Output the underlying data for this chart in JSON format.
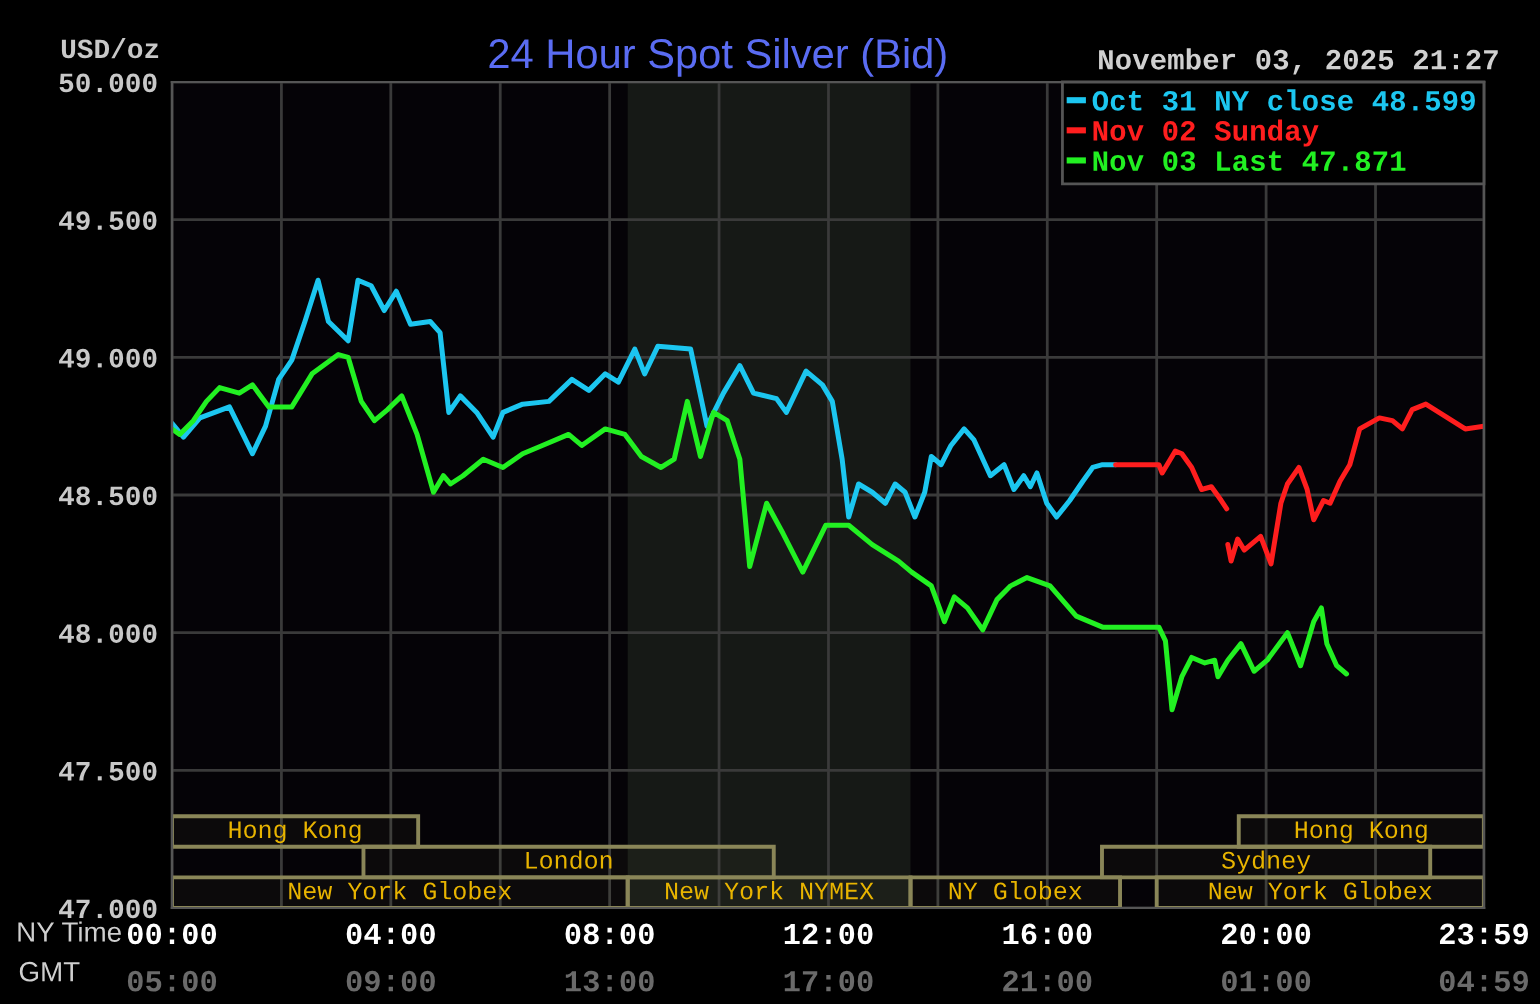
{
  "chart_data": [
    {
      "type": "line",
      "title": "24 Hour Spot Silver (Bid)",
      "subtitle": "November 03, 2025 21:27",
      "xlabel": "NY Time",
      "x2label": "GMT",
      "ylabel": "USD/oz",
      "xlim": [
        0,
        23.983
      ],
      "ylim": [
        47,
        50
      ],
      "xticks": [
        {
          "value": 0,
          "label": "00:00"
        },
        {
          "value": 2,
          "label": null
        },
        {
          "value": 4,
          "label": "04:00"
        },
        {
          "value": 6,
          "label": null
        },
        {
          "value": 8,
          "label": "08:00"
        },
        {
          "value": 10,
          "label": null
        },
        {
          "value": 12,
          "label": "12:00"
        },
        {
          "value": 14,
          "label": null
        },
        {
          "value": 16,
          "label": "16:00"
        },
        {
          "value": 18,
          "label": null
        },
        {
          "value": 20,
          "label": "20:00"
        },
        {
          "value": 22,
          "label": null
        },
        {
          "value": 23.983,
          "label": "23:59"
        }
      ],
      "x2lim": [
        "2025-11-03T05:00",
        "2025-11-04T04:59"
      ],
      "x2ticks": [
        {
          "value": "2025-11-03T05:00",
          "label": "05:00"
        },
        {
          "value": "2025-11-03T09:00",
          "label": "09:00"
        },
        {
          "value": "2025-11-03T13:00",
          "label": "13:00"
        },
        {
          "value": "2025-11-03T17:00",
          "label": "17:00"
        },
        {
          "value": "2025-11-03T21:00",
          "label": "21:00"
        },
        {
          "value": "2025-11-04T01:00",
          "label": "01:00"
        },
        {
          "value": "2025-11-04T04:59",
          "label": "04:59"
        }
      ],
      "yticks": [
        {
          "value": 47,
          "label": "47.000"
        },
        {
          "value": 47.5,
          "label": "47.500"
        },
        {
          "value": 48,
          "label": "48.000"
        },
        {
          "value": 48.5,
          "label": "48.500"
        },
        {
          "value": 49,
          "label": "49.000"
        },
        {
          "value": 49.5,
          "label": "49.500"
        },
        {
          "value": 50,
          "label": "50.000"
        }
      ],
      "series": [
        {
          "name": "Oct 31 NY close 48.599",
          "color": "#1cc6f0",
          "x": [
            0,
            0.21,
            0.51,
            1.05,
            1.47,
            1.71,
            1.95,
            2.19,
            2.43,
            2.67,
            2.86,
            3.22,
            3.4,
            3.64,
            3.88,
            4.1,
            4.36,
            4.72,
            4.9,
            5.06,
            5.27,
            5.57,
            5.87,
            6.05,
            6.41,
            6.89,
            7.31,
            7.62,
            7.92,
            8.16,
            8.46,
            8.64,
            8.88,
            9.48,
            9.78,
            10.08,
            10.38,
            10.63,
            11.05,
            11.23,
            11.59,
            11.89,
            12.07,
            12.25,
            12.37,
            12.55,
            12.8,
            13.04,
            13.22,
            13.4,
            13.58,
            13.76,
            13.88,
            14.06,
            14.24,
            14.48,
            14.66,
            14.96,
            15.21,
            15.39,
            15.57,
            15.69,
            15.81,
            15.99,
            16.17,
            16.41,
            16.65,
            16.83,
            17.01,
            17.25
          ],
          "values": [
            48.76,
            48.71,
            48.78,
            48.82,
            48.65,
            48.75,
            48.92,
            48.99,
            49.13,
            49.28,
            49.13,
            49.06,
            49.28,
            49.26,
            49.17,
            49.24,
            49.12,
            49.13,
            49.09,
            48.8,
            48.86,
            48.8,
            48.71,
            48.8,
            48.83,
            48.84,
            48.92,
            48.88,
            48.94,
            48.91,
            49.03,
            48.94,
            49.04,
            49.03,
            48.75,
            48.87,
            48.97,
            48.87,
            48.85,
            48.8,
            48.95,
            48.9,
            48.84,
            48.63,
            48.42,
            48.54,
            48.51,
            48.47,
            48.54,
            48.51,
            48.42,
            48.51,
            48.64,
            48.61,
            48.68,
            48.74,
            48.7,
            48.57,
            48.61,
            48.52,
            48.57,
            48.53,
            48.58,
            48.47,
            48.42,
            48.48,
            48.55,
            48.6,
            48.61,
            48.61
          ]
        },
        {
          "name": "Nov 02 Sunday",
          "color": "#ff1e1e",
          "x": [
            17.25,
            18.04,
            18.1,
            18.34,
            18.46,
            18.64,
            18.82,
            19.0,
            19.18,
            19.28,
            19.29,
            19.3,
            19.36,
            19.48,
            19.6,
            19.9,
            20.09,
            20.27,
            20.39,
            20.6,
            20.75,
            20.87,
            21.05,
            21.17,
            21.35,
            21.53,
            21.71,
            21.89,
            22.07,
            22.31,
            22.49,
            22.67,
            22.92,
            23.16,
            23.4,
            23.64,
            23.98
          ],
          "values": [
            48.61,
            48.61,
            48.58,
            48.66,
            48.65,
            48.6,
            48.52,
            48.53,
            48.48,
            48.45,
            null,
            48.32,
            48.26,
            48.34,
            48.3,
            48.35,
            48.25,
            48.47,
            48.54,
            48.6,
            48.52,
            48.41,
            48.48,
            48.47,
            48.55,
            48.61,
            48.74,
            48.76,
            48.78,
            48.77,
            48.74,
            48.81,
            48.83,
            48.8,
            48.77,
            48.74,
            48.75
          ]
        },
        {
          "name": "Nov 03 Last 47.871",
          "color": "#22f022",
          "x": [
            0,
            0.14,
            0.39,
            0.63,
            0.87,
            1.23,
            1.47,
            1.77,
            2.19,
            2.56,
            3.04,
            3.22,
            3.46,
            3.7,
            3.94,
            4.2,
            4.48,
            4.78,
            4.96,
            5.09,
            5.32,
            5.69,
            6.05,
            6.41,
            6.77,
            7.25,
            7.49,
            7.92,
            8.28,
            8.58,
            8.94,
            9.18,
            9.42,
            9.66,
            9.9,
            10.15,
            10.38,
            10.56,
            10.87,
            11.17,
            11.53,
            11.95,
            12.37,
            12.8,
            13.28,
            13.52,
            13.88,
            14.12,
            14.3,
            14.54,
            14.82,
            15.08,
            15.33,
            15.63,
            16.05,
            16.53,
            17.01,
            18.04,
            18.16,
            18.28,
            18.46,
            18.64,
            18.88,
            19.06,
            19.12,
            19.3,
            19.54,
            19.78,
            20.02,
            20.39,
            20.63,
            20.87,
            21.01,
            21.11,
            21.29,
            21.47
          ],
          "values": [
            48.74,
            48.72,
            48.77,
            48.84,
            48.89,
            48.87,
            48.9,
            48.82,
            48.82,
            48.94,
            49.01,
            49.0,
            48.84,
            48.77,
            48.81,
            48.86,
            48.72,
            48.51,
            48.57,
            48.54,
            48.57,
            48.63,
            48.6,
            48.65,
            48.68,
            48.72,
            48.68,
            48.74,
            48.72,
            48.64,
            48.6,
            48.63,
            48.84,
            48.64,
            48.8,
            48.77,
            48.63,
            48.24,
            48.47,
            48.36,
            48.22,
            48.39,
            48.39,
            48.32,
            48.26,
            48.22,
            48.17,
            48.04,
            48.13,
            48.09,
            48.01,
            48.12,
            48.17,
            48.2,
            48.17,
            48.06,
            48.02,
            48.02,
            47.97,
            47.72,
            47.84,
            47.91,
            47.89,
            47.9,
            47.84,
            47.9,
            47.96,
            47.86,
            47.9,
            48.0,
            47.88,
            48.04,
            48.09,
            47.96,
            47.88,
            47.85
          ]
        }
      ],
      "bands": [
        {
          "axis": "x",
          "from": 8.33,
          "to": 13.5,
          "color": "#161916"
        }
      ],
      "grid": true,
      "legend": "top right"
    },
    {
      "type": "bar",
      "orientation": "horizontal",
      "xlim": [
        0,
        23.983
      ],
      "tick_labels": false,
      "categories": [
        null,
        null,
        null,
        null,
        null,
        null,
        null,
        null,
        null,
        null,
        null,
        null,
        null,
        null,
        null,
        null,
        null,
        null,
        null,
        null,
        null,
        null,
        null,
        null,
        null,
        null,
        null
      ],
      "series": [
        {
          "name": "Hong Kong",
          "color": "#8a8658",
          "values": [
            null,
            null,
            null,
            null,
            null,
            null,
            null,
            null,
            null,
            null,
            null,
            null,
            null,
            null,
            null,
            null,
            null,
            null,
            null,
            null,
            null,
            null,
            null,
            null,
            4.5,
            null,
            null
          ],
          "base": [
            null,
            null,
            null,
            null,
            null,
            null,
            null,
            null,
            null,
            null,
            null,
            null,
            null,
            null,
            null,
            null,
            null,
            null,
            null,
            null,
            null,
            null,
            null,
            null,
            0,
            null,
            null
          ]
        },
        {
          "name": "Hong Kong",
          "color": "#8a8658",
          "values": [
            null,
            null,
            null,
            null,
            null,
            null,
            null,
            null,
            null,
            null,
            null,
            null,
            null,
            null,
            null,
            null,
            null,
            null,
            null,
            null,
            null,
            null,
            null,
            null,
            4.48,
            null,
            null
          ],
          "base": [
            null,
            null,
            null,
            null,
            null,
            null,
            null,
            null,
            null,
            null,
            null,
            null,
            null,
            null,
            null,
            null,
            null,
            null,
            null,
            null,
            null,
            null,
            null,
            null,
            19.5,
            null,
            null
          ]
        },
        {
          "name": "London",
          "color": "#8a8658",
          "values": [
            null,
            null,
            null,
            null,
            null,
            null,
            null,
            null,
            null,
            null,
            null,
            null,
            null,
            null,
            null,
            null,
            null,
            null,
            null,
            null,
            null,
            null,
            null,
            null,
            null,
            7.5,
            null
          ],
          "base": [
            null,
            null,
            null,
            null,
            null,
            null,
            null,
            null,
            null,
            null,
            null,
            null,
            null,
            null,
            null,
            null,
            null,
            null,
            null,
            null,
            null,
            null,
            null,
            null,
            null,
            3.5,
            null
          ]
        },
        {
          "name": "Sydney",
          "color": "#8a8658",
          "values": [
            null,
            null,
            null,
            null,
            null,
            null,
            null,
            null,
            null,
            null,
            null,
            null,
            null,
            null,
            null,
            null,
            null,
            null,
            null,
            null,
            null,
            null,
            null,
            null,
            null,
            6,
            null
          ],
          "base": [
            null,
            null,
            null,
            null,
            null,
            null,
            null,
            null,
            null,
            null,
            null,
            null,
            null,
            null,
            null,
            null,
            null,
            null,
            null,
            null,
            null,
            null,
            null,
            null,
            null,
            17,
            null
          ]
        },
        {
          "name": "New York Globex",
          "color": "#8a8658",
          "values": [
            null,
            null,
            null,
            null,
            null,
            null,
            null,
            null,
            null,
            null,
            null,
            null,
            null,
            null,
            null,
            null,
            null,
            null,
            null,
            null,
            null,
            null,
            null,
            null,
            null,
            null,
            8.33
          ],
          "base": [
            null,
            null,
            null,
            null,
            null,
            null,
            null,
            null,
            null,
            null,
            null,
            null,
            null,
            null,
            null,
            null,
            null,
            null,
            null,
            null,
            null,
            null,
            null,
            null,
            null,
            null,
            0
          ]
        },
        {
          "name": "New York NYMEX",
          "color": "#8a8658",
          "values": [
            null,
            null,
            null,
            null,
            null,
            null,
            null,
            null,
            null,
            null,
            null,
            null,
            null,
            null,
            null,
            null,
            null,
            null,
            null,
            null,
            null,
            null,
            null,
            null,
            null,
            null,
            5.17
          ],
          "base": [
            null,
            null,
            null,
            null,
            null,
            null,
            null,
            null,
            null,
            null,
            null,
            null,
            null,
            null,
            null,
            null,
            null,
            null,
            null,
            null,
            null,
            null,
            null,
            null,
            null,
            null,
            8.33
          ]
        },
        {
          "name": "NY Globex",
          "color": "#8a8658",
          "values": [
            null,
            null,
            null,
            null,
            null,
            null,
            null,
            null,
            null,
            null,
            null,
            null,
            null,
            null,
            null,
            null,
            null,
            null,
            null,
            null,
            null,
            null,
            null,
            null,
            null,
            null,
            3.83
          ],
          "base": [
            null,
            null,
            null,
            null,
            null,
            null,
            null,
            null,
            null,
            null,
            null,
            null,
            null,
            null,
            null,
            null,
            null,
            null,
            null,
            null,
            null,
            null,
            null,
            null,
            null,
            null,
            13.5
          ]
        },
        {
          "name": "New York Globex",
          "color": "#8a8658",
          "values": [
            null,
            null,
            null,
            null,
            null,
            null,
            null,
            null,
            null,
            null,
            null,
            null,
            null,
            null,
            null,
            null,
            null,
            null,
            null,
            null,
            null,
            null,
            null,
            null,
            null,
            null,
            5.98
          ],
          "base": [
            null,
            null,
            null,
            null,
            null,
            null,
            null,
            null,
            null,
            null,
            null,
            null,
            null,
            null,
            null,
            null,
            null,
            null,
            null,
            null,
            null,
            null,
            null,
            null,
            null,
            null,
            18
          ]
        }
      ]
    }
  ]
}
